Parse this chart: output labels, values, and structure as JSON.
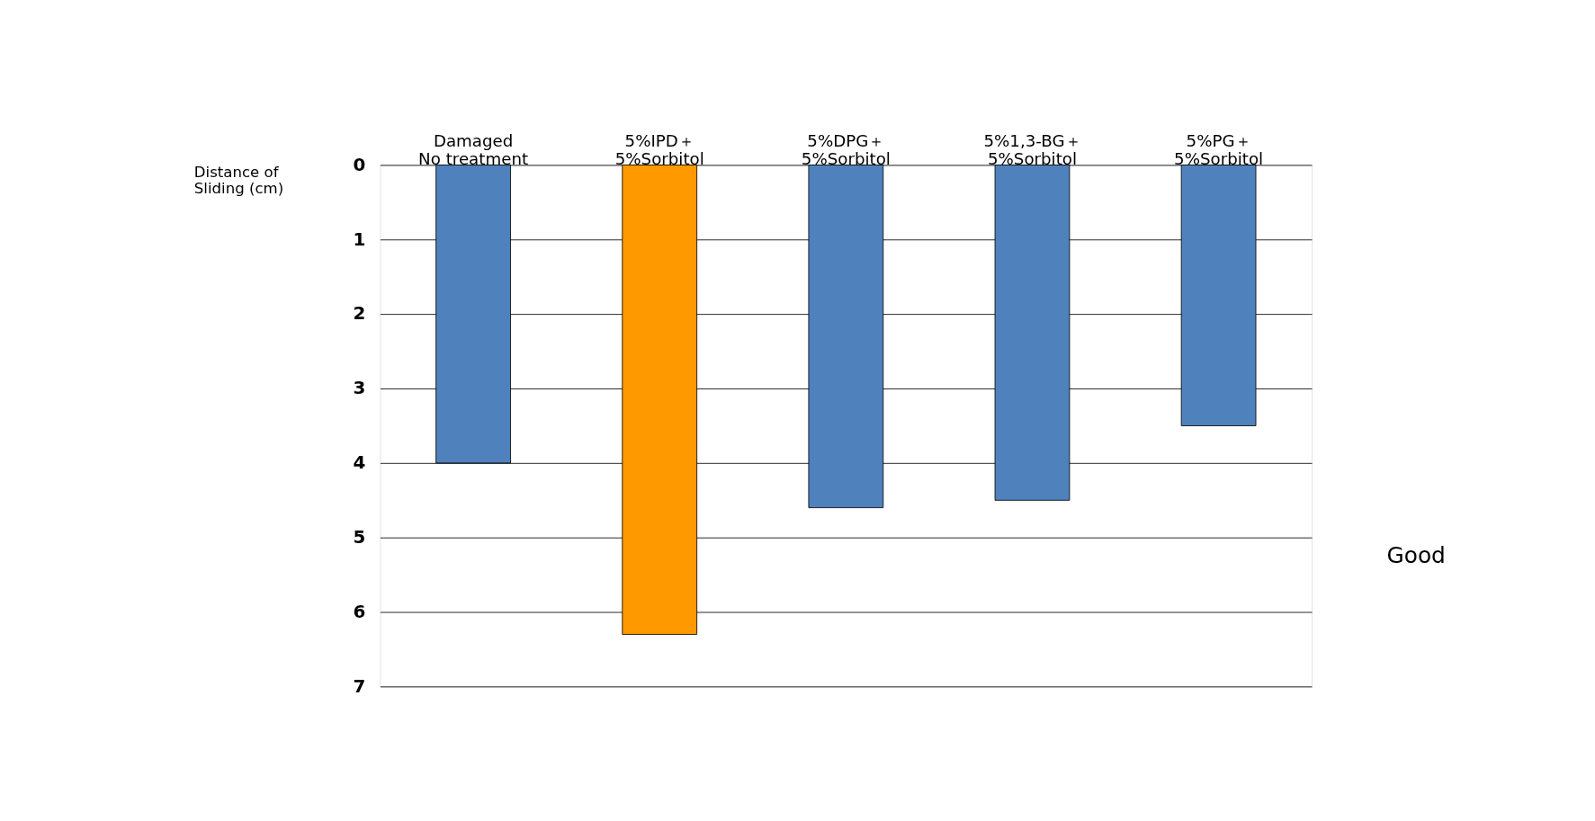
{
  "chart_data": {
    "type": "bar",
    "categories": [
      "Damaged\nNo treatment",
      "5%IPD＋\n5%Sorbitol",
      "5%DPG＋\n5%Sorbitol",
      "5%1,3-BG＋\n5%Sorbitol",
      "5%PG＋\n5%Sorbitol"
    ],
    "values": [
      4.0,
      6.3,
      4.6,
      4.5,
      3.5
    ],
    "colors": [
      "#4f81bd",
      "#ff9900",
      "#4f81bd",
      "#4f81bd",
      "#4f81bd"
    ],
    "ylabel": "Distance of\nSliding (cm)",
    "ylim": [
      7,
      0
    ],
    "yticks": [
      0,
      1,
      2,
      3,
      4,
      5,
      6,
      7
    ],
    "grid": "y",
    "annotations": [
      "Good"
    ]
  }
}
